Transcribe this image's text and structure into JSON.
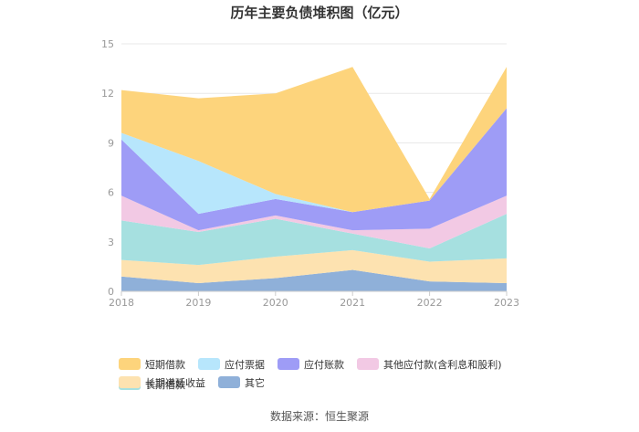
{
  "chart_data": {
    "type": "area",
    "stacked": true,
    "title": "历年主要负债堆积图（亿元）",
    "categories": [
      "2018",
      "2019",
      "2020",
      "2021",
      "2022",
      "2023"
    ],
    "ylim": [
      0,
      15
    ],
    "yticks": [
      0,
      3,
      6,
      9,
      12,
      15
    ],
    "grid": true,
    "legend_position": "bottom",
    "series": [
      {
        "name": "其它",
        "color": "#8fb0d9",
        "values": [
          0.9,
          0.5,
          0.8,
          1.3,
          0.6,
          0.5
        ]
      },
      {
        "name": "长期递延收益",
        "color": "#fde2b0",
        "values": [
          1.0,
          1.1,
          1.3,
          1.2,
          1.2,
          1.5
        ]
      },
      {
        "name": "长期借款",
        "color": "#a6e0e0",
        "values": [
          2.4,
          2.0,
          2.3,
          1.0,
          0.8,
          2.7
        ]
      },
      {
        "name": "其他应付款(含利息和股利)",
        "color": "#f2c9e4",
        "values": [
          1.5,
          0.1,
          0.2,
          0.2,
          1.2,
          1.1
        ]
      },
      {
        "name": "应付账款",
        "color": "#9e9cf6",
        "values": [
          3.4,
          1.0,
          1.0,
          1.1,
          1.7,
          5.3
        ]
      },
      {
        "name": "应付票据",
        "color": "#b7e6fc",
        "values": [
          0.4,
          3.2,
          0.3,
          0.0,
          0.0,
          0.0
        ]
      },
      {
        "name": "短期借款",
        "color": "#fdd47c",
        "values": [
          2.6,
          3.8,
          6.1,
          8.8,
          0.1,
          2.5
        ]
      }
    ]
  },
  "legend_order": [
    "短期借款",
    "应付票据",
    "应付账款",
    "其他应付款(含利息和股利)",
    "长期借款",
    "长期递延收益",
    "其它"
  ],
  "source": "数据来源：恒生聚源"
}
